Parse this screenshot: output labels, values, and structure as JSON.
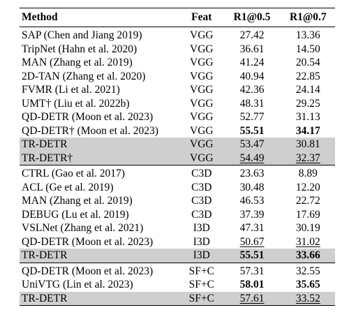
{
  "header": {
    "method": "Method",
    "feat": "Feat",
    "r1_05": "R1@0.5",
    "r1_07": "R1@0.7"
  },
  "sections": [
    {
      "rows": [
        {
          "method": "SAP (Chen and Jiang 2019)",
          "feat": "VGG",
          "r1_05": "27.42",
          "r1_07": "13.36",
          "highlight": false
        },
        {
          "method": "TripNet (Hahn et al. 2020)",
          "feat": "VGG",
          "r1_05": "36.61",
          "r1_07": "14.50",
          "highlight": false
        },
        {
          "method": "MAN (Zhang et al. 2019)",
          "feat": "VGG",
          "r1_05": "41.24",
          "r1_07": "20.54",
          "highlight": false
        },
        {
          "method": "2D-TAN (Zhang et al. 2020)",
          "feat": "VGG",
          "r1_05": "40.94",
          "r1_07": "22.85",
          "highlight": false
        },
        {
          "method": "FVMR (Li et al. 2021)",
          "feat": "VGG",
          "r1_05": "42.36",
          "r1_07": "24.14",
          "highlight": false
        },
        {
          "method": "UMT† (Liu et al. 2022b)",
          "feat": "VGG",
          "r1_05": "48.31",
          "r1_07": "29.25",
          "highlight": false
        },
        {
          "method": "QD-DETR (Moon et al. 2023)",
          "feat": "VGG",
          "r1_05": "52.77",
          "r1_07": "31.13",
          "highlight": false
        },
        {
          "method": "QD-DETR† (Moon et al. 2023)",
          "feat": "VGG",
          "r1_05": "55.51",
          "r1_07": "34.17",
          "highlight": false,
          "bold_r1_05": true,
          "bold_r1_07": true
        },
        {
          "method": "TR-DETR",
          "feat": "VGG",
          "r1_05": "53.47",
          "r1_07": "30.81",
          "highlight": true
        },
        {
          "method": "TR-DETR†",
          "feat": "VGG",
          "r1_05": "54.49",
          "r1_07": "32.37",
          "highlight": true,
          "underline_r1_05": true,
          "underline_r1_07": true
        }
      ]
    },
    {
      "rows": [
        {
          "method": "CTRL (Gao et al. 2017)",
          "feat": "C3D",
          "r1_05": "23.63",
          "r1_07": "8.89",
          "highlight": false
        },
        {
          "method": "ACL (Ge et al. 2019)",
          "feat": "C3D",
          "r1_05": "30.48",
          "r1_07": "12.20",
          "highlight": false
        },
        {
          "method": "MAN (Zhang et al. 2019)",
          "feat": "C3D",
          "r1_05": "46.53",
          "r1_07": "22.72",
          "highlight": false
        },
        {
          "method": "DEBUG (Lu et al. 2019)",
          "feat": "C3D",
          "r1_05": "37.39",
          "r1_07": "17.69",
          "highlight": false
        },
        {
          "method": "VSLNet (Zhang et al. 2021)",
          "feat": "I3D",
          "r1_05": "47.31",
          "r1_07": "30.19",
          "highlight": false
        },
        {
          "method": "QD-DETR (Moon et al. 2023)",
          "feat": "I3D",
          "r1_05": "50.67",
          "r1_07": "31.02",
          "highlight": false,
          "underline_r1_05": true,
          "underline_r1_07": true
        },
        {
          "method": "TR-DETR",
          "feat": "I3D",
          "r1_05": "55.51",
          "r1_07": "33.66",
          "highlight": true,
          "bold_r1_05": true,
          "bold_r1_07": true
        }
      ]
    },
    {
      "rows": [
        {
          "method": "QD-DETR (Moon et al. 2023)",
          "feat": "SF+C",
          "r1_05": "57.31",
          "r1_07": "32.55",
          "highlight": false
        },
        {
          "method": "UniVTG (Lin et al. 2023)",
          "feat": "SF+C",
          "r1_05": "58.01",
          "r1_07": "35.65",
          "highlight": false,
          "bold_r1_05": true,
          "bold_r1_07": true
        },
        {
          "method": "TR-DETR",
          "feat": "SF+C",
          "r1_05": "57.61",
          "r1_07": "33.52",
          "highlight": true,
          "underline_r1_05": true,
          "underline_r1_07": true
        }
      ]
    }
  ]
}
